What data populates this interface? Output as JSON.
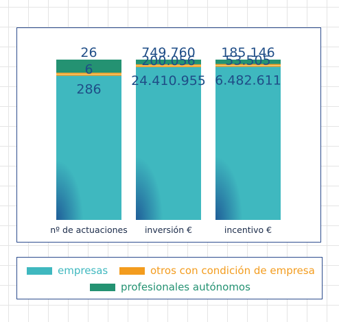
{
  "colors": {
    "empresas": "#3fb8bf",
    "empresas_shade": "#1f5d98",
    "otros": "#f39c1e",
    "profesionales": "#249272",
    "value_text": "#1f4d87",
    "frame": "#2a4a8c"
  },
  "chart_data": {
    "type": "bar",
    "stacked": true,
    "normalized": true,
    "categories": [
      "nº de actuaciones",
      "inversión €",
      "incentivo €"
    ],
    "series": [
      {
        "name": "empresas",
        "values": [
          286,
          24410955,
          6482611
        ],
        "labels": [
          "286",
          "24.410.955",
          "6.482.611"
        ]
      },
      {
        "name": "otros con condición de empresa",
        "values": [
          6,
          200056,
          53505
        ],
        "labels": [
          "6",
          "200.056",
          "53.505"
        ]
      },
      {
        "name": "profesionales autónomos",
        "values": [
          26,
          749760,
          185146
        ],
        "labels": [
          "26",
          "749.760",
          "185.146"
        ]
      }
    ],
    "legend_position": "bottom",
    "grid": false
  },
  "legend": {
    "items": [
      {
        "label": "empresas",
        "color": "#3fb8bf",
        "text_color": "#3fb8bf"
      },
      {
        "label": "otros con condición de empresa",
        "color": "#f39c1e",
        "text_color": "#f39c1e"
      },
      {
        "label": "profesionales autónomos",
        "color": "#249272",
        "text_color": "#249272"
      }
    ]
  }
}
